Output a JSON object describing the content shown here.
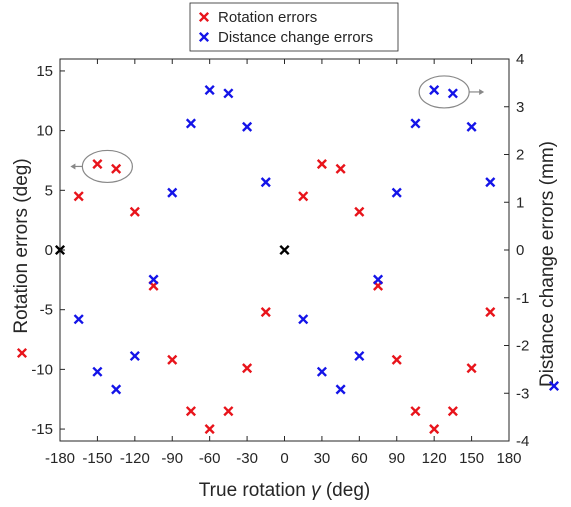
{
  "chart_data": {
    "type": "scatter",
    "title": "",
    "xlabel_prefix": "True rotation ",
    "xlabel_symbol": "γ",
    "xlabel_suffix": " (deg)",
    "ylabel_left": "Rotation errors (deg)",
    "ylabel_right": "Distance change errors (mm)",
    "xlim": [
      -180,
      180
    ],
    "xticks": [
      -180,
      -150,
      -120,
      -90,
      -60,
      -30,
      0,
      30,
      60,
      90,
      120,
      150,
      180
    ],
    "ylim_left": [
      -16,
      16
    ],
    "yticks_left": [
      -15,
      -10,
      -5,
      0,
      5,
      10,
      15
    ],
    "ylim_right": [
      -4,
      4
    ],
    "yticks_right": [
      -4,
      -3,
      -2,
      -1,
      0,
      1,
      2,
      3,
      4
    ],
    "legend": {
      "placement": "top-center"
    },
    "series": [
      {
        "name": "Rotation errors",
        "axis": "left",
        "color": "#e8141b",
        "points": [
          [
            -165,
            4.5
          ],
          [
            -150,
            7.2
          ],
          [
            -135,
            6.8
          ],
          [
            -120,
            3.2
          ],
          [
            -105,
            -3.0
          ],
          [
            -90,
            -9.2
          ],
          [
            -75,
            -13.5
          ],
          [
            -60,
            -15.0
          ],
          [
            -45,
            -13.5
          ],
          [
            -30,
            -9.9
          ],
          [
            -15,
            -5.2
          ],
          [
            15,
            4.5
          ],
          [
            30,
            7.2
          ],
          [
            45,
            6.8
          ],
          [
            60,
            3.2
          ],
          [
            75,
            -3.0
          ],
          [
            90,
            -9.2
          ],
          [
            105,
            -13.5
          ],
          [
            120,
            -15.0
          ],
          [
            135,
            -13.5
          ],
          [
            150,
            -9.9
          ],
          [
            165,
            -5.2
          ]
        ]
      },
      {
        "name": "Distance change errors",
        "axis": "right",
        "color": "#1414e8",
        "points": [
          [
            -165,
            -1.45
          ],
          [
            -150,
            -2.55
          ],
          [
            -135,
            -2.92
          ],
          [
            -120,
            -2.22
          ],
          [
            -105,
            -0.62
          ],
          [
            -90,
            1.2
          ],
          [
            -75,
            2.65
          ],
          [
            -60,
            3.35
          ],
          [
            -45,
            3.28
          ],
          [
            -30,
            2.58
          ],
          [
            -15,
            1.42
          ],
          [
            15,
            -1.45
          ],
          [
            30,
            -2.55
          ],
          [
            45,
            -2.92
          ],
          [
            60,
            -2.22
          ],
          [
            75,
            -0.62
          ],
          [
            90,
            1.2
          ],
          [
            105,
            2.65
          ],
          [
            120,
            3.35
          ],
          [
            135,
            3.28
          ],
          [
            150,
            2.58
          ],
          [
            165,
            1.42
          ]
        ]
      },
      {
        "name": "",
        "axis": "left",
        "color": "#000000",
        "points": [
          [
            -180,
            0
          ],
          [
            0,
            0
          ]
        ]
      }
    ],
    "annotations": [
      {
        "type": "ellipse-arrow",
        "axis": "left",
        "center": [
          -142,
          7.0
        ],
        "direction": "left"
      },
      {
        "type": "ellipse-arrow",
        "axis": "right",
        "center": [
          128,
          3.31
        ],
        "direction": "right"
      }
    ]
  },
  "colors": {
    "left_axis_marker": "#e8141b",
    "right_axis_marker": "#1414e8",
    "annotation": "#888888"
  }
}
